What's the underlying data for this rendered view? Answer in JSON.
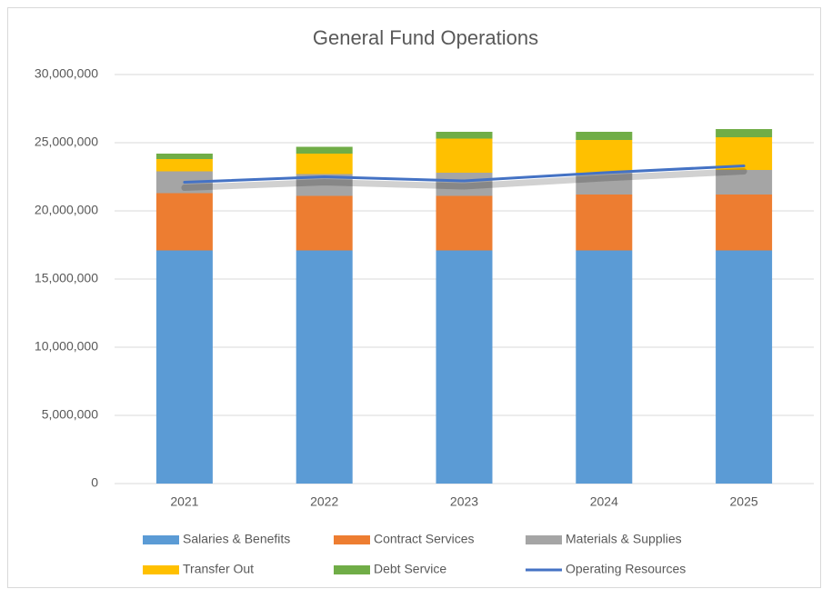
{
  "chart_data": {
    "type": "bar",
    "stacked": true,
    "title": "General Fund Operations",
    "categories": [
      "2021",
      "2022",
      "2023",
      "2024",
      "2025"
    ],
    "series": [
      {
        "name": "Salaries & Benefits",
        "color": "#5b9bd5",
        "values": [
          17100000,
          17100000,
          17100000,
          17100000,
          17100000
        ]
      },
      {
        "name": "Contract Services",
        "color": "#ed7d31",
        "values": [
          4200000,
          4000000,
          4000000,
          4100000,
          4100000
        ]
      },
      {
        "name": "Materials & Supplies",
        "color": "#a5a5a5",
        "values": [
          1600000,
          1600000,
          1700000,
          1600000,
          1800000
        ]
      },
      {
        "name": "Transfer Out",
        "color": "#ffc000",
        "values": [
          900000,
          1500000,
          2500000,
          2400000,
          2400000
        ]
      },
      {
        "name": "Debt Service",
        "color": "#70ad47",
        "values": [
          400000,
          500000,
          500000,
          600000,
          600000
        ]
      },
      {
        "name": "Operating Resources",
        "color": "#4472c4",
        "type": "line",
        "values": [
          22100000,
          22500000,
          22200000,
          22800000,
          23300000
        ]
      }
    ],
    "ylim": [
      0,
      30000000
    ],
    "yticks": [
      0,
      {
        "value": 5000000,
        "label": "5,000,000"
      },
      {
        "value": 10000000,
        "label": "10,000,000"
      },
      {
        "value": 15000000,
        "label": "15,000,000"
      },
      {
        "value": 20000000,
        "label": "20,000,000"
      },
      {
        "value": 25000000,
        "label": "25,000,000"
      },
      {
        "value": 30000000,
        "label": "30,000,000"
      }
    ],
    "grid": true,
    "legend": "bottom"
  }
}
